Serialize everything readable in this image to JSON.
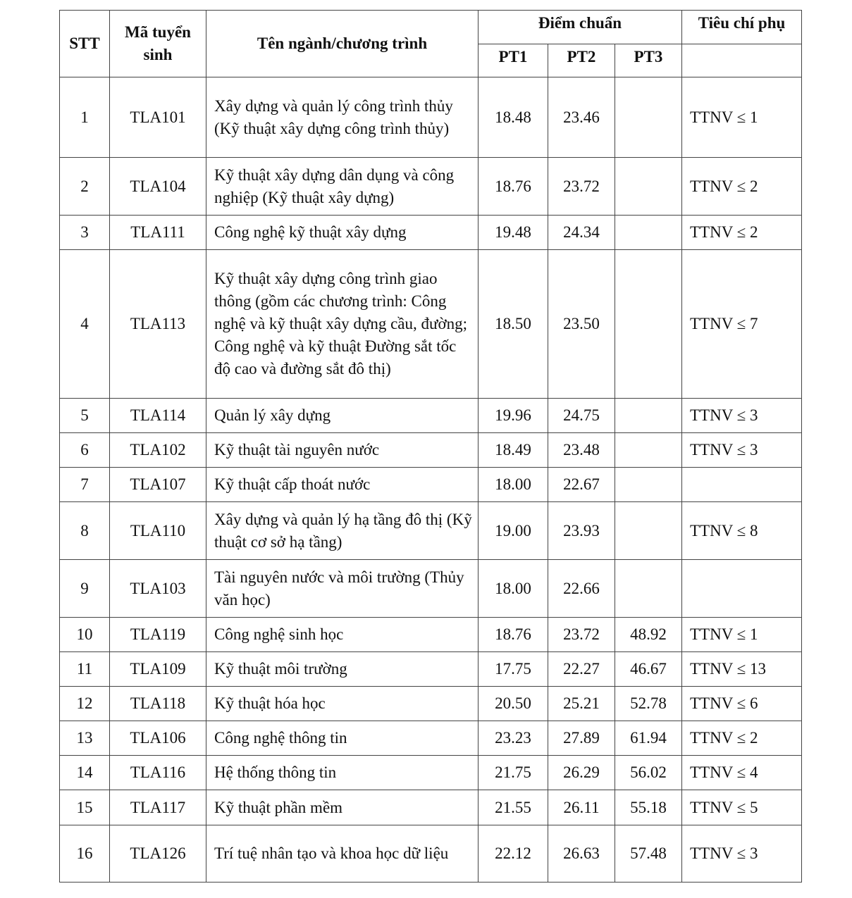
{
  "header": {
    "stt": "STT",
    "code": "Mã tuyển sinh",
    "name": "Tên ngành/chương trình",
    "score": "Điểm chuẩn",
    "pt1": "PT1",
    "pt2": "PT2",
    "pt3": "PT3",
    "criteria": "Tiêu chí phụ"
  },
  "rows": [
    {
      "stt": "1",
      "code": "TLA101",
      "name": "Xây dựng và quản lý công trình thủy (Kỹ thuật xây dựng công trình thủy)",
      "pt1": "18.48",
      "pt2": "23.46",
      "pt3": "",
      "crit": "TTNV ≤ 1"
    },
    {
      "stt": "2",
      "code": "TLA104",
      "name": "Kỹ thuật xây dựng dân dụng và công nghiệp (Kỹ thuật xây dựng)",
      "pt1": "18.76",
      "pt2": "23.72",
      "pt3": "",
      "crit": "TTNV ≤ 2"
    },
    {
      "stt": "3",
      "code": "TLA111",
      "name": "Công nghệ kỹ thuật xây dựng",
      "pt1": "19.48",
      "pt2": "24.34",
      "pt3": "",
      "crit": "TTNV ≤ 2"
    },
    {
      "stt": "4",
      "code": "TLA113",
      "name": "Kỹ thuật xây dựng công trình giao thông (gồm các chương trình: Công nghệ và kỹ thuật xây dựng cầu, đường; Công nghệ và kỹ thuật Đường sắt tốc độ cao và đường sắt đô thị)",
      "pt1": "18.50",
      "pt2": "23.50",
      "pt3": "",
      "crit": "TTNV ≤ 7"
    },
    {
      "stt": "5",
      "code": "TLA114",
      "name": "Quản lý xây dựng",
      "pt1": "19.96",
      "pt2": "24.75",
      "pt3": "",
      "crit": "TTNV ≤ 3"
    },
    {
      "stt": "6",
      "code": "TLA102",
      "name": "Kỹ thuật tài nguyên nước",
      "pt1": "18.49",
      "pt2": "23.48",
      "pt3": "",
      "crit": "TTNV ≤ 3"
    },
    {
      "stt": "7",
      "code": "TLA107",
      "name": "Kỹ thuật cấp thoát nước",
      "pt1": "18.00",
      "pt2": "22.67",
      "pt3": "",
      "crit": ""
    },
    {
      "stt": "8",
      "code": "TLA110",
      "name": "Xây dựng và quản lý hạ tầng đô thị (Kỹ thuật cơ sở hạ tầng)",
      "pt1": "19.00",
      "pt2": "23.93",
      "pt3": "",
      "crit": "TTNV ≤ 8"
    },
    {
      "stt": "9",
      "code": "TLA103",
      "name": "Tài nguyên nước và môi trường (Thủy văn học)",
      "pt1": "18.00",
      "pt2": "22.66",
      "pt3": "",
      "crit": ""
    },
    {
      "stt": "10",
      "code": "TLA119",
      "name": "Công nghệ sinh học",
      "pt1": "18.76",
      "pt2": "23.72",
      "pt3": "48.92",
      "crit": "TTNV ≤ 1"
    },
    {
      "stt": "11",
      "code": "TLA109",
      "name": "Kỹ thuật môi trường",
      "pt1": "17.75",
      "pt2": "22.27",
      "pt3": "46.67",
      "crit": "TTNV ≤ 13"
    },
    {
      "stt": "12",
      "code": "TLA118",
      "name": "Kỹ thuật hóa học",
      "pt1": "20.50",
      "pt2": "25.21",
      "pt3": "52.78",
      "crit": "TTNV ≤ 6"
    },
    {
      "stt": "13",
      "code": "TLA106",
      "name": "Công nghệ thông tin",
      "pt1": "23.23",
      "pt2": "27.89",
      "pt3": "61.94",
      "crit": "TTNV ≤ 2"
    },
    {
      "stt": "14",
      "code": "TLA116",
      "name": "Hệ thống thông tin",
      "pt1": "21.75",
      "pt2": "26.29",
      "pt3": "56.02",
      "crit": "TTNV ≤ 4"
    },
    {
      "stt": "15",
      "code": "TLA117",
      "name": "Kỹ thuật phần mềm",
      "pt1": "21.55",
      "pt2": "26.11",
      "pt3": "55.18",
      "crit": "TTNV ≤ 5"
    },
    {
      "stt": "16",
      "code": "TLA126",
      "name": "Trí tuệ nhân tạo và khoa học dữ liệu",
      "pt1": "22.12",
      "pt2": "26.63",
      "pt3": "57.48",
      "crit": "TTNV ≤ 3"
    }
  ]
}
